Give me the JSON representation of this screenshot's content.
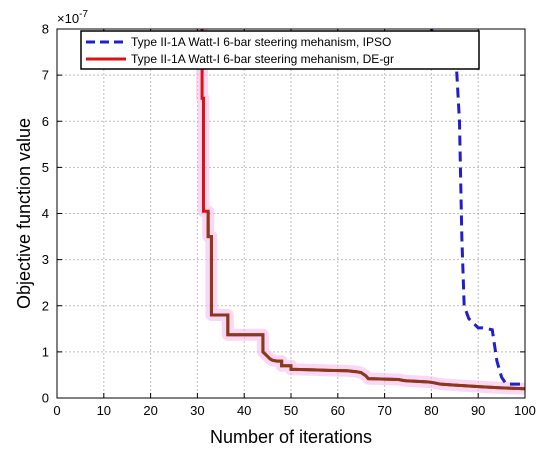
{
  "chart_data": {
    "type": "line",
    "xlabel": "Number of iterations",
    "ylabel": "Objective function value",
    "y_exponent_label": "×10",
    "y_exponent_power": "-7",
    "xlim": [
      0,
      100
    ],
    "ylim": [
      0,
      8
    ],
    "xticks": [
      0,
      10,
      20,
      30,
      40,
      50,
      60,
      70,
      80,
      90,
      100
    ],
    "yticks": [
      0,
      1,
      2,
      3,
      4,
      5,
      6,
      7,
      8
    ],
    "grid": true,
    "legend_position": "top",
    "series": [
      {
        "name": "Type II-1A Watt-I 6-bar steering mehanism, IPSO",
        "color": "#1f1fcc",
        "style": "dashed",
        "x": [
          80,
          80.5,
          85,
          86,
          86.5,
          87,
          88,
          89,
          90,
          91,
          93,
          94,
          95,
          96,
          99,
          100
        ],
        "y": [
          8,
          7.82,
          7.82,
          6.0,
          3.5,
          2.0,
          1.72,
          1.62,
          1.52,
          1.52,
          1.48,
          0.8,
          0.45,
          0.3,
          0.3,
          0.22
        ]
      },
      {
        "name": "Type II-1A Watt-I 6-bar steering mehanism, DE-gr",
        "color": "#dd1111",
        "style": "solid",
        "x": [
          31,
          31,
          31.3,
          31.3,
          32.3,
          32.3,
          33,
          33,
          36.5,
          36.5,
          44,
          44,
          45,
          45.5,
          46,
          47,
          48,
          48,
          50,
          50,
          51,
          55,
          58,
          62,
          64,
          65,
          66,
          66.5,
          70,
          73,
          74,
          75,
          77,
          79,
          80,
          82,
          85,
          88,
          91,
          95,
          100
        ],
        "y": [
          8,
          6.5,
          6.5,
          4.05,
          4.05,
          3.5,
          3.5,
          1.8,
          1.8,
          1.37,
          1.37,
          1.0,
          0.9,
          0.85,
          0.82,
          0.8,
          0.8,
          0.7,
          0.7,
          0.62,
          0.62,
          0.61,
          0.6,
          0.59,
          0.57,
          0.55,
          0.48,
          0.42,
          0.41,
          0.4,
          0.38,
          0.37,
          0.36,
          0.35,
          0.34,
          0.3,
          0.28,
          0.26,
          0.24,
          0.22,
          0.2
        ]
      }
    ]
  }
}
